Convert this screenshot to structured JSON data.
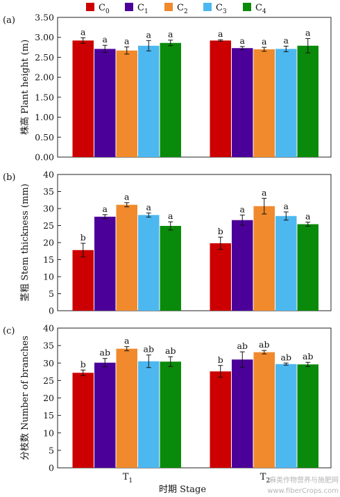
{
  "legend": {
    "placement": "top",
    "items": [
      {
        "base": "C",
        "sub": "0",
        "color": "#cc0000"
      },
      {
        "base": "C",
        "sub": "1",
        "color": "#4b0099"
      },
      {
        "base": "C",
        "sub": "2",
        "color": "#f08a2c"
      },
      {
        "base": "C",
        "sub": "3",
        "color": "#4db8f0"
      },
      {
        "base": "C",
        "sub": "4",
        "color": "#0a8a0a"
      }
    ]
  },
  "xlabel": "时期 Stage",
  "groups": [
    {
      "base": "T",
      "sub": "1"
    },
    {
      "base": "T",
      "sub": "2"
    }
  ],
  "watermark": {
    "line1": "麻类作物营养与施肥网",
    "line2": "www.fiberCrops.com"
  },
  "chart_data": [
    {
      "type": "bar",
      "panel": "(a)",
      "ylabel": "株高 Plant height (m)",
      "ylim": [
        0,
        3.5
      ],
      "yticks": [
        "0.00",
        "0.50",
        "1.00",
        "1.50",
        "2.00",
        "2.50",
        "3.00",
        "3.50"
      ],
      "grid": false,
      "categories": [
        "T1",
        "T2"
      ],
      "series": [
        {
          "name": "C0",
          "values": [
            2.92,
            2.92
          ],
          "errors": [
            0.07,
            0.02
          ],
          "letters": [
            "a",
            "a"
          ]
        },
        {
          "name": "C1",
          "values": [
            2.71,
            2.73
          ],
          "errors": [
            0.09,
            0.04
          ],
          "letters": [
            "a",
            "a"
          ]
        },
        {
          "name": "C2",
          "values": [
            2.67,
            2.7
          ],
          "errors": [
            0.09,
            0.05
          ],
          "letters": [
            "a",
            "a"
          ]
        },
        {
          "name": "C3",
          "values": [
            2.79,
            2.71
          ],
          "errors": [
            0.13,
            0.07
          ],
          "letters": [
            "a",
            "a"
          ]
        },
        {
          "name": "C4",
          "values": [
            2.86,
            2.79
          ],
          "errors": [
            0.07,
            0.18
          ],
          "letters": [
            "a",
            "a"
          ]
        }
      ]
    },
    {
      "type": "bar",
      "panel": "(b)",
      "ylabel": "茎粗 Stem thickness (mm)",
      "ylim": [
        0,
        40
      ],
      "yticks": [
        "0",
        "5",
        "10",
        "15",
        "20",
        "25",
        "30",
        "35",
        "40"
      ],
      "grid": false,
      "categories": [
        "T1",
        "T2"
      ],
      "series": [
        {
          "name": "C0",
          "values": [
            17.8,
            19.8
          ],
          "errors": [
            2.0,
            1.8
          ],
          "letters": [
            "b",
            "b"
          ]
        },
        {
          "name": "C1",
          "values": [
            27.6,
            26.6
          ],
          "errors": [
            0.6,
            1.5
          ],
          "letters": [
            "a",
            "a"
          ]
        },
        {
          "name": "C2",
          "values": [
            31.1,
            30.7
          ],
          "errors": [
            0.6,
            2.3
          ],
          "letters": [
            "a",
            "a"
          ]
        },
        {
          "name": "C3",
          "values": [
            28.1,
            27.8
          ],
          "errors": [
            0.6,
            1.2
          ],
          "letters": [
            "a",
            "a"
          ]
        },
        {
          "name": "C4",
          "values": [
            24.9,
            25.4
          ],
          "errors": [
            1.2,
            0.6
          ],
          "letters": [
            "a",
            "a"
          ]
        }
      ]
    },
    {
      "type": "bar",
      "panel": "(c)",
      "ylabel": "分枝数 Number of branches",
      "ylim": [
        0,
        40
      ],
      "yticks": [
        "0",
        "5",
        "10",
        "15",
        "20",
        "25",
        "30",
        "35",
        "40"
      ],
      "grid": false,
      "categories": [
        "T1",
        "T2"
      ],
      "series": [
        {
          "name": "C0",
          "values": [
            27.2,
            27.6
          ],
          "errors": [
            0.8,
            1.7
          ],
          "letters": [
            "b",
            "b"
          ]
        },
        {
          "name": "C1",
          "values": [
            30.1,
            31.0
          ],
          "errors": [
            1.2,
            2.2
          ],
          "letters": [
            "ab",
            "ab"
          ]
        },
        {
          "name": "C2",
          "values": [
            34.1,
            33.1
          ],
          "errors": [
            0.6,
            0.5
          ],
          "letters": [
            "a",
            "ab"
          ]
        },
        {
          "name": "C3",
          "values": [
            30.5,
            29.7
          ],
          "errors": [
            1.8,
            0.3
          ],
          "letters": [
            "ab",
            "ab"
          ]
        },
        {
          "name": "C4",
          "values": [
            30.4,
            29.6
          ],
          "errors": [
            1.4,
            0.6
          ],
          "letters": [
            "ab",
            "ab"
          ]
        }
      ]
    }
  ]
}
